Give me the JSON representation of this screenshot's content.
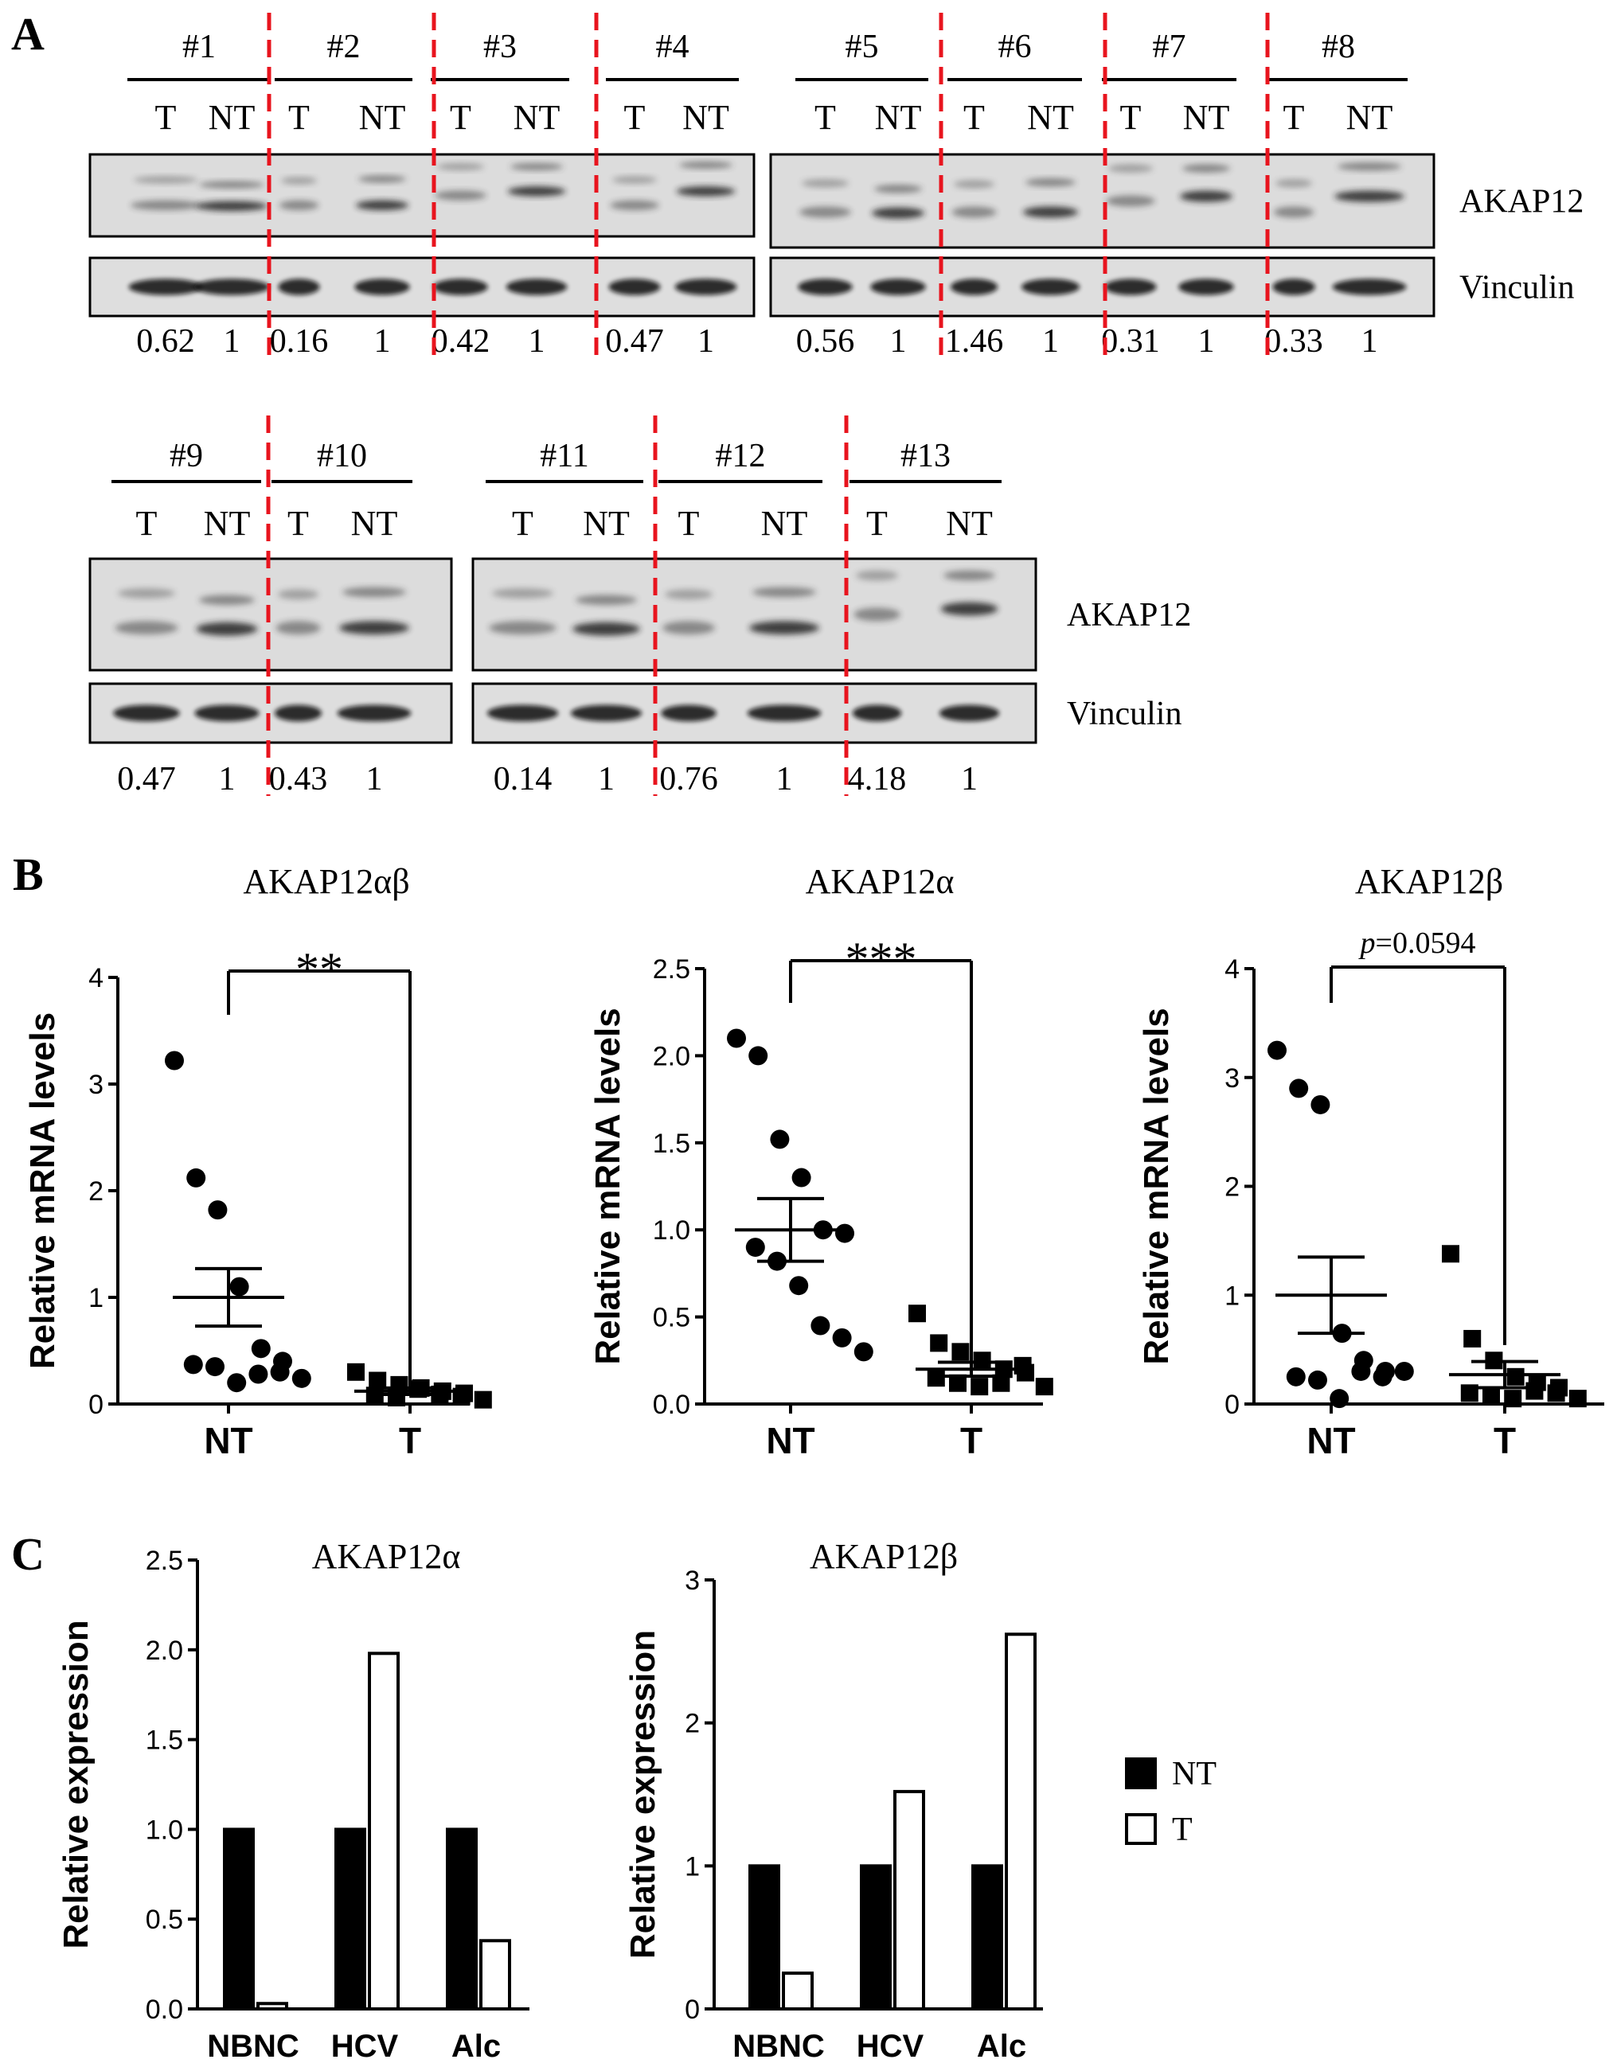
{
  "panel_labels": [
    "A",
    "B",
    "C"
  ],
  "panelA": {
    "lane_labels": [
      "T",
      "NT"
    ],
    "protein_labels": [
      "AKAP12",
      "Vinculin"
    ],
    "blots": [
      {
        "samples": [
          {
            "id": "#1",
            "ratios": [
              "0.62",
              "1"
            ]
          },
          {
            "id": "#2",
            "ratios": [
              "0.16",
              "1"
            ]
          },
          {
            "id": "#3",
            "ratios": [
              "0.42",
              "1"
            ]
          },
          {
            "id": "#4",
            "ratios": [
              "0.47",
              "1"
            ]
          }
        ]
      },
      {
        "samples": [
          {
            "id": "#5",
            "ratios": [
              "0.56",
              "1"
            ]
          },
          {
            "id": "#6",
            "ratios": [
              "1.46",
              "1"
            ]
          },
          {
            "id": "#7",
            "ratios": [
              "0.31",
              "1"
            ]
          },
          {
            "id": "#8",
            "ratios": [
              "0.33",
              "1"
            ]
          }
        ]
      },
      {
        "samples": [
          {
            "id": "#9",
            "ratios": [
              "0.47",
              "1"
            ]
          },
          {
            "id": "#10",
            "ratios": [
              "0.43",
              "1"
            ]
          }
        ]
      },
      {
        "samples": [
          {
            "id": "#11",
            "ratios": [
              "0.14",
              "1"
            ]
          },
          {
            "id": "#12",
            "ratios": [
              "0.76",
              "1"
            ]
          },
          {
            "id": "#13",
            "ratios": [
              "4.18",
              "1"
            ]
          }
        ]
      }
    ]
  },
  "chart_data": [
    {
      "type": "scatter",
      "title": "AKAP12αβ",
      "ylabel": "Relative mRNA levels",
      "categories": [
        "NT",
        "T"
      ],
      "ylim": [
        0,
        4
      ],
      "yticks": [
        "0",
        "1",
        "2",
        "3",
        "4"
      ],
      "series": [
        {
          "marker": "circle",
          "values": [
            3.22,
            2.12,
            1.82,
            1.1,
            0.52,
            0.4,
            0.37,
            0.35,
            0.2,
            0.28,
            0.3,
            0.24
          ]
        },
        {
          "marker": "square",
          "values": [
            0.3,
            0.22,
            0.18,
            0.15,
            0.12,
            0.1,
            0.08,
            0.06,
            0.14,
            0.09,
            0.07,
            0.04
          ]
        }
      ],
      "means": [
        1.0,
        0.12
      ],
      "sem": [
        0.27,
        0.03
      ],
      "significance": "**"
    },
    {
      "type": "scatter",
      "title": "AKAP12α",
      "ylabel": "Relative mRNA levels",
      "categories": [
        "NT",
        "T"
      ],
      "ylim": [
        0,
        2.5
      ],
      "yticks": [
        "0.0",
        "0.5",
        "1.0",
        "1.5",
        "2.0",
        "2.5"
      ],
      "series": [
        {
          "marker": "circle",
          "values": [
            2.1,
            2.0,
            1.52,
            1.3,
            1.0,
            0.98,
            0.9,
            0.82,
            0.68,
            0.45,
            0.38,
            0.3
          ]
        },
        {
          "marker": "square",
          "values": [
            0.52,
            0.35,
            0.3,
            0.25,
            0.2,
            0.18,
            0.15,
            0.12,
            0.1,
            0.12,
            0.22,
            0.1
          ]
        }
      ],
      "means": [
        1.0,
        0.2
      ],
      "sem": [
        0.18,
        0.04
      ],
      "significance": "***"
    },
    {
      "type": "scatter",
      "title": "AKAP12β",
      "ylabel": "Relative mRNA levels",
      "categories": [
        "NT",
        "T"
      ],
      "ylim": [
        0,
        4
      ],
      "yticks": [
        "0",
        "1",
        "2",
        "3",
        "4"
      ],
      "series": [
        {
          "marker": "circle",
          "values": [
            3.25,
            2.9,
            2.75,
            0.65,
            0.4,
            0.3,
            0.25,
            0.22,
            0.05,
            0.3,
            0.25,
            0.3
          ]
        },
        {
          "marker": "square",
          "values": [
            1.38,
            0.6,
            0.4,
            0.25,
            0.2,
            0.15,
            0.1,
            0.08,
            0.05,
            0.12,
            0.1,
            0.05
          ]
        }
      ],
      "means": [
        1.0,
        0.27
      ],
      "sem": [
        0.35,
        0.12
      ],
      "significance": "p=0.0594"
    },
    {
      "type": "bar",
      "title": "AKAP12α",
      "ylabel": "Relative expression",
      "categories": [
        "NBNC",
        "HCV",
        "Alc"
      ],
      "ylim": [
        0,
        2.5
      ],
      "yticks": [
        "0.0",
        "0.5",
        "1.0",
        "1.5",
        "2.0",
        "2.5"
      ],
      "series": [
        {
          "name": "NT",
          "values": [
            1.0,
            1.0,
            1.0
          ]
        },
        {
          "name": "T",
          "values": [
            0.03,
            1.98,
            0.38
          ]
        }
      ]
    },
    {
      "type": "bar",
      "title": "AKAP12β",
      "ylabel": "Relative expression",
      "categories": [
        "NBNC",
        "HCV",
        "Alc"
      ],
      "ylim": [
        0,
        3
      ],
      "yticks": [
        "0",
        "1",
        "2",
        "3"
      ],
      "series": [
        {
          "name": "NT",
          "values": [
            1.0,
            1.0,
            1.0
          ]
        },
        {
          "name": "T",
          "values": [
            0.25,
            1.52,
            2.62
          ]
        }
      ]
    }
  ],
  "legend": [
    {
      "label": "NT",
      "fill": "#000000"
    },
    {
      "label": "T",
      "fill": "#ffffff"
    }
  ],
  "colors": {
    "divider": "#e8141e",
    "ink": "#000000"
  }
}
